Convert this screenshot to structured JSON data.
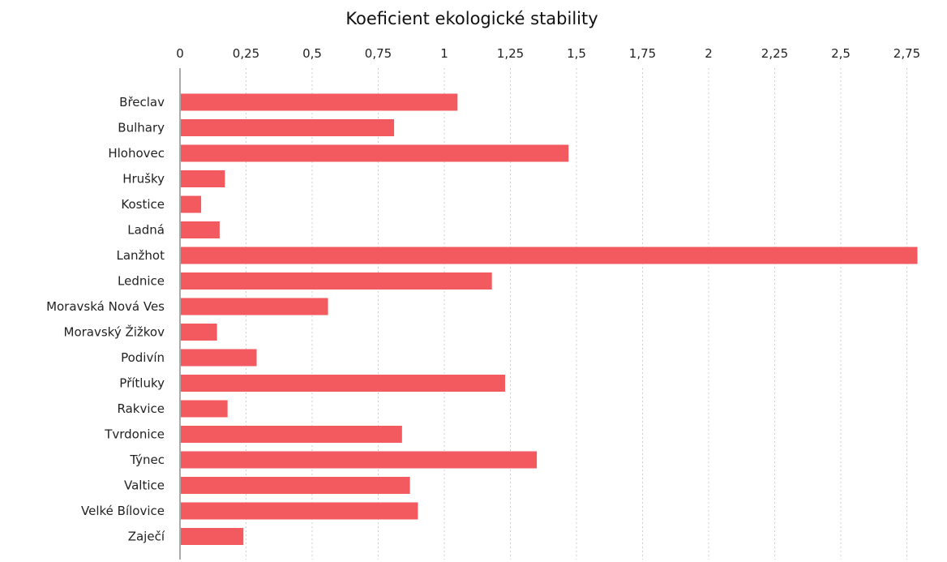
{
  "chart_data": {
    "type": "bar",
    "orientation": "horizontal",
    "title": "Koeficient ekologické stability",
    "xlabel": "",
    "ylabel": "",
    "xlim": [
      0,
      2.8
    ],
    "x_ticks": [
      0,
      0.25,
      0.5,
      0.75,
      1,
      1.25,
      1.5,
      1.75,
      2,
      2.25,
      2.5,
      2.75
    ],
    "x_tick_labels": [
      "0",
      "0,25",
      "0,5",
      "0,75",
      "1",
      "1,25",
      "1,5",
      "1,75",
      "2",
      "2,25",
      "2,5",
      "2,75"
    ],
    "x_axis_position": "top",
    "grid": true,
    "legend": "none",
    "bar_color": "#f25a5f",
    "categories": [
      "Břeclav",
      "Bulhary",
      "Hlohovec",
      "Hrušky",
      "Kostice",
      "Ladná",
      "Lanžhot",
      "Lednice",
      "Moravská Nová Ves",
      "Moravský Žižkov",
      "Podivín",
      "Přítluky",
      "Rakvice",
      "Tvrdonice",
      "Týnec",
      "Valtice",
      "Velké Bílovice",
      "Zaječí"
    ],
    "values": [
      1.05,
      0.81,
      1.47,
      0.17,
      0.08,
      0.15,
      2.79,
      1.18,
      0.56,
      0.14,
      0.29,
      1.23,
      0.18,
      0.84,
      1.35,
      0.87,
      0.9,
      0.24
    ]
  }
}
